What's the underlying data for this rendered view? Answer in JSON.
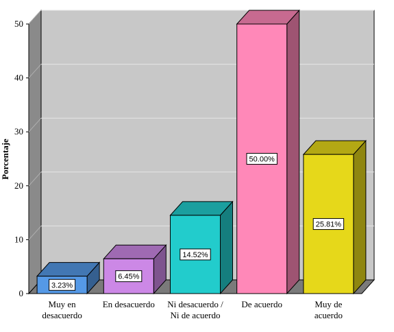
{
  "chart_data": {
    "type": "bar",
    "categories": [
      [
        "Muy en",
        "desacuerdo"
      ],
      [
        "En desacuerdo"
      ],
      [
        "Ni desacuerdo /",
        "Ni de acuerdo"
      ],
      [
        "De acuerdo"
      ],
      [
        "Muy de",
        "acuerdo"
      ]
    ],
    "values": [
      3.23,
      6.45,
      14.52,
      50.0,
      25.81
    ],
    "data_labels": [
      "3.23%",
      "6.45%",
      "14.52%",
      "50.00%",
      "25.81%"
    ],
    "colors": [
      "#5599e6",
      "#cc88e6",
      "#22cccc",
      "#ff88b8",
      "#e6d81a"
    ],
    "ylabel": "Porcentaje",
    "xlabel": "",
    "ylim": [
      0,
      50
    ],
    "yticks": [
      0,
      10,
      20,
      30,
      40,
      50
    ],
    "grid": true,
    "style": "3d",
    "plot_background": "#c8c8c8"
  }
}
